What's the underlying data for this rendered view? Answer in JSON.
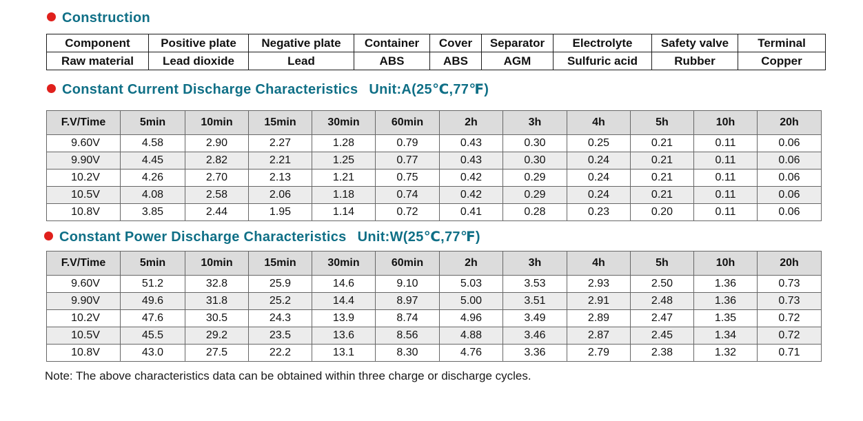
{
  "construction": {
    "title": "Construction",
    "rows": [
      [
        "Component",
        "Positive plate",
        "Negative plate",
        "Container",
        "Cover",
        "Separator",
        "Electrolyte",
        "Safety valve",
        "Terminal"
      ],
      [
        "Raw material",
        "Lead dioxide",
        "Lead",
        "ABS",
        "ABS",
        "AGM",
        "Sulfuric acid",
        "Rubber",
        "Copper"
      ]
    ]
  },
  "current": {
    "title": "Constant Current Discharge Characteristics",
    "unit": "Unit:A(25℃,77℉)",
    "headers": [
      "F.V/Time",
      "5min",
      "10min",
      "15min",
      "30min",
      "60min",
      "2h",
      "3h",
      "4h",
      "5h",
      "10h",
      "20h"
    ],
    "rows": [
      [
        "9.60V",
        "4.58",
        "2.90",
        "2.27",
        "1.28",
        "0.79",
        "0.43",
        "0.30",
        "0.25",
        "0.21",
        "0.11",
        "0.06"
      ],
      [
        "9.90V",
        "4.45",
        "2.82",
        "2.21",
        "1.25",
        "0.77",
        "0.43",
        "0.30",
        "0.24",
        "0.21",
        "0.11",
        "0.06"
      ],
      [
        "10.2V",
        "4.26",
        "2.70",
        "2.13",
        "1.21",
        "0.75",
        "0.42",
        "0.29",
        "0.24",
        "0.21",
        "0.11",
        "0.06"
      ],
      [
        "10.5V",
        "4.08",
        "2.58",
        "2.06",
        "1.18",
        "0.74",
        "0.42",
        "0.29",
        "0.24",
        "0.21",
        "0.11",
        "0.06"
      ],
      [
        "10.8V",
        "3.85",
        "2.44",
        "1.95",
        "1.14",
        "0.72",
        "0.41",
        "0.28",
        "0.23",
        "0.20",
        "0.11",
        "0.06"
      ]
    ]
  },
  "power": {
    "title": "Constant Power Discharge Characteristics",
    "unit": "Unit:W(25℃,77℉)",
    "headers": [
      "F.V/Time",
      "5min",
      "10min",
      "15min",
      "30min",
      "60min",
      "2h",
      "3h",
      "4h",
      "5h",
      "10h",
      "20h"
    ],
    "rows": [
      [
        "9.60V",
        "51.2",
        "32.8",
        "25.9",
        "14.6",
        "9.10",
        "5.03",
        "3.53",
        "2.93",
        "2.50",
        "1.36",
        "0.73"
      ],
      [
        "9.90V",
        "49.6",
        "31.8",
        "25.2",
        "14.4",
        "8.97",
        "5.00",
        "3.51",
        "2.91",
        "2.48",
        "1.36",
        "0.73"
      ],
      [
        "10.2V",
        "47.6",
        "30.5",
        "24.3",
        "13.9",
        "8.74",
        "4.96",
        "3.49",
        "2.89",
        "2.47",
        "1.35",
        "0.72"
      ],
      [
        "10.5V",
        "45.5",
        "29.2",
        "23.5",
        "13.6",
        "8.56",
        "4.88",
        "3.46",
        "2.87",
        "2.45",
        "1.34",
        "0.72"
      ],
      [
        "10.8V",
        "43.0",
        "27.5",
        "22.2",
        "13.1",
        "8.30",
        "4.76",
        "3.36",
        "2.79",
        "2.38",
        "1.32",
        "0.71"
      ]
    ]
  },
  "note": "Note: The above characteristics data can be obtained within three charge or discharge cycles.",
  "colors": {
    "heading": "#0f6f86",
    "bullet": "#e0201c",
    "header_bg": "#dcdcdc",
    "row_shade": "#ececec"
  }
}
